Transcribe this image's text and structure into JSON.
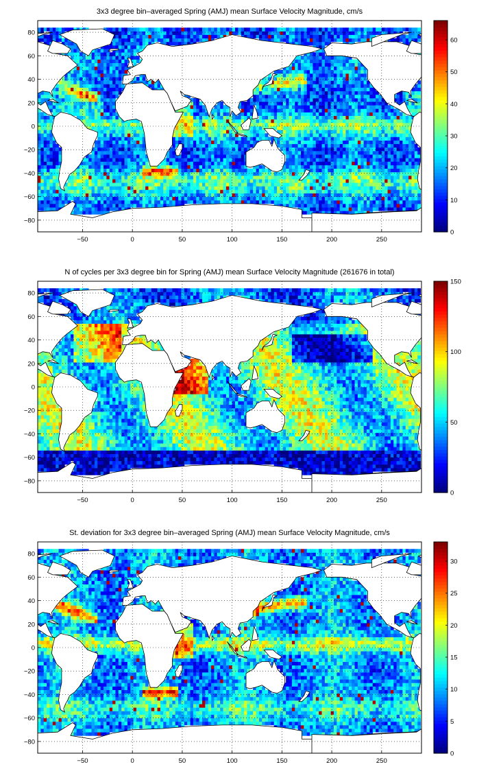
{
  "chart_data": [
    {
      "type": "heatmap",
      "title": "3x3 degree bin–averaged Spring (AMJ) mean Surface Velocity Magnitude, cm/s",
      "xlabel": "",
      "ylabel": "",
      "xlim": [
        -95,
        290
      ],
      "ylim": [
        -90,
        90
      ],
      "x_ticks": [
        "−50",
        "0",
        "50",
        "100",
        "150",
        "200",
        "250"
      ],
      "y_ticks": [
        "80",
        "60",
        "40",
        "20",
        "0",
        "−20",
        "−40",
        "−60",
        "−80"
      ],
      "colorbar": {
        "min": 0,
        "max": 66,
        "ticks": [
          "60",
          "50",
          "40",
          "30",
          "20",
          "10",
          "0"
        ]
      },
      "colormap": "jet",
      "grid": true,
      "field": "speed"
    },
    {
      "type": "heatmap",
      "title": "N of cycles per 3x3 degree bin for Spring (AMJ) mean Surface Velocity Magnitude (261676 in total)",
      "xlabel": "",
      "ylabel": "",
      "xlim": [
        -95,
        290
      ],
      "ylim": [
        -90,
        90
      ],
      "x_ticks": [
        "−50",
        "0",
        "50",
        "100",
        "150",
        "200",
        "250"
      ],
      "y_ticks": [
        "80",
        "60",
        "40",
        "20",
        "0",
        "−20",
        "−40",
        "−60",
        "−80"
      ],
      "colorbar": {
        "min": 0,
        "max": 150,
        "ticks": [
          "150",
          "100",
          "50",
          "0"
        ]
      },
      "colormap": "jet",
      "grid": true,
      "field": "count"
    },
    {
      "type": "heatmap",
      "title": "St. deviation for 3x3 degree bin–averaged Spring (AMJ) mean Surface Velocity Magnitude, cm/s",
      "xlabel": "",
      "ylabel": "",
      "xlim": [
        -95,
        290
      ],
      "ylim": [
        -90,
        90
      ],
      "x_ticks": [
        "−50",
        "0",
        "50",
        "100",
        "150",
        "200",
        "250"
      ],
      "y_ticks": [
        "80",
        "60",
        "40",
        "20",
        "0",
        "−20",
        "−40",
        "−60",
        "−80"
      ],
      "colorbar": {
        "min": 0,
        "max": 33,
        "ticks": [
          "30",
          "25",
          "20",
          "15",
          "10",
          "5",
          "0"
        ]
      },
      "colormap": "jet",
      "grid": true,
      "field": "std"
    }
  ]
}
